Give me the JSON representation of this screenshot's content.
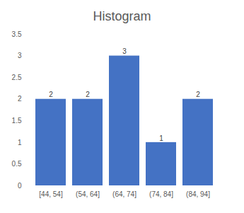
{
  "chart_data": {
    "type": "bar",
    "title": "Histogram",
    "categories": [
      "[44, 54]",
      "(54, 64]",
      "(64, 74]",
      "(74, 84]",
      "(84, 94]"
    ],
    "values": [
      2,
      2,
      3,
      1,
      2
    ],
    "color": "#4472c4",
    "ylim": [
      0,
      3.5
    ],
    "yticks": [
      0,
      0.5,
      1,
      1.5,
      2,
      2.5,
      3,
      3.5
    ],
    "grid": false,
    "data_labels": true
  }
}
